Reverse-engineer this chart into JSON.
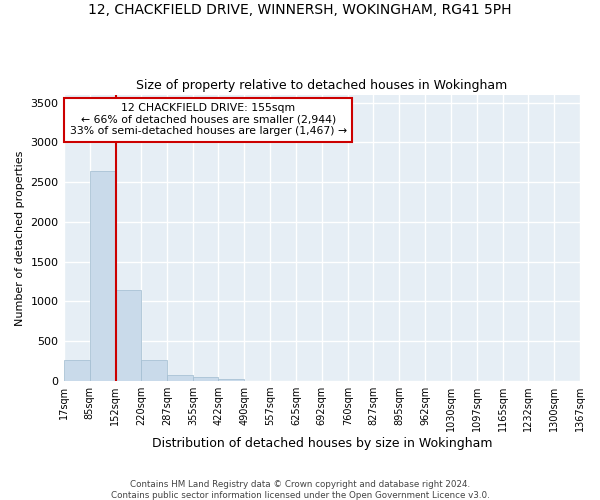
{
  "title": "12, CHACKFIELD DRIVE, WINNERSH, WOKINGHAM, RG41 5PH",
  "subtitle": "Size of property relative to detached houses in Wokingham",
  "xlabel": "Distribution of detached houses by size in Wokingham",
  "ylabel": "Number of detached properties",
  "footer_line1": "Contains HM Land Registry data © Crown copyright and database right 2024.",
  "footer_line2": "Contains public sector information licensed under the Open Government Licence v3.0.",
  "bar_color": "#c9daea",
  "bar_edge_color": "#a0bcd0",
  "bg_color": "#e6eef5",
  "grid_color": "#ffffff",
  "vline_color": "#cc0000",
  "annotation_text_line1": "12 CHACKFIELD DRIVE: 155sqm",
  "annotation_text_line2": "← 66% of detached houses are smaller (2,944)",
  "annotation_text_line3": "33% of semi-detached houses are larger (1,467) →",
  "property_size": 155,
  "bin_edges": [
    17,
    85,
    152,
    220,
    287,
    355,
    422,
    490,
    557,
    625,
    692,
    760,
    827,
    895,
    962,
    1030,
    1097,
    1165,
    1232,
    1300,
    1367
  ],
  "bin_counts": [
    270,
    2640,
    1150,
    270,
    80,
    50,
    30,
    0,
    0,
    0,
    0,
    0,
    0,
    0,
    0,
    0,
    0,
    0,
    0,
    0
  ],
  "ylim": [
    0,
    3600
  ],
  "yticks": [
    0,
    500,
    1000,
    1500,
    2000,
    2500,
    3000,
    3500
  ]
}
